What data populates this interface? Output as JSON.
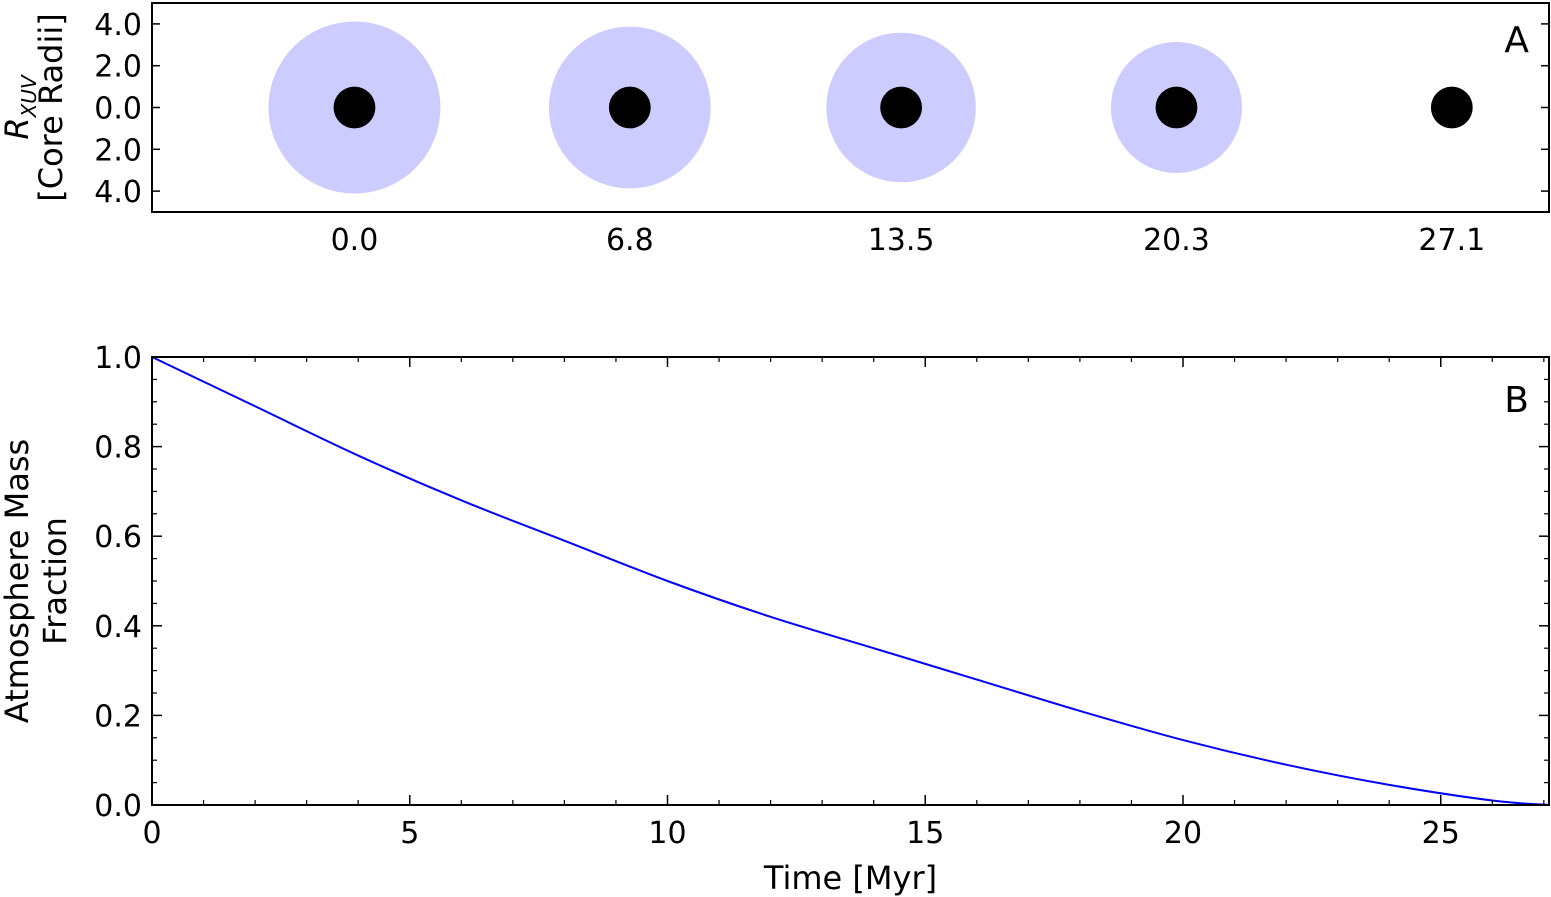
{
  "chart_data": [
    {
      "type": "scatter",
      "panel_label": "A",
      "ylabel_symbol": "R",
      "ylabel_subscript": "XUV",
      "ylabel_line2": "[Core Radii]",
      "y_tick_labels": [
        "4.0",
        "2.0",
        "0.0",
        "2.0",
        "4.0"
      ],
      "y_tick_values": [
        4,
        2,
        0,
        -2,
        -4
      ],
      "ylim": [
        -5,
        5
      ],
      "x_tick_labels": [
        "0.0",
        "6.8",
        "13.5",
        "20.3",
        "27.1"
      ],
      "x": [
        0.0,
        6.8,
        13.5,
        20.3,
        27.1
      ],
      "xlim": [
        -5,
        29.5
      ],
      "core_radius": 1.0,
      "envelope_radius": [
        4.2,
        3.95,
        3.65,
        3.2,
        0
      ],
      "core_color": "#000000",
      "envelope_color": "#ccccff"
    },
    {
      "type": "line",
      "panel_label": "B",
      "xlabel": "Time [Myr]",
      "ylabel_line1": "Atmosphere Mass",
      "ylabel_line2": "Fraction",
      "xlim": [
        0,
        27.1
      ],
      "ylim": [
        0,
        1.0
      ],
      "x_tick_labels": [
        "0",
        "5",
        "10",
        "15",
        "20",
        "25"
      ],
      "x_tick_values": [
        0,
        5,
        10,
        15,
        20,
        25
      ],
      "y_tick_labels": [
        "0.0",
        "0.2",
        "0.4",
        "0.6",
        "0.8",
        "1.0"
      ],
      "y_tick_values": [
        0,
        0.2,
        0.4,
        0.6,
        0.8,
        1.0
      ],
      "grid": false,
      "line_color": "#0000ff",
      "series": [
        {
          "x": [
            0,
            2,
            4,
            6,
            8,
            10,
            12,
            14,
            16,
            18,
            20,
            22,
            24,
            26,
            27.1
          ],
          "y": [
            1.0,
            0.89,
            0.78,
            0.68,
            0.59,
            0.5,
            0.42,
            0.35,
            0.28,
            0.21,
            0.145,
            0.09,
            0.045,
            0.01,
            0.0
          ]
        }
      ]
    }
  ]
}
